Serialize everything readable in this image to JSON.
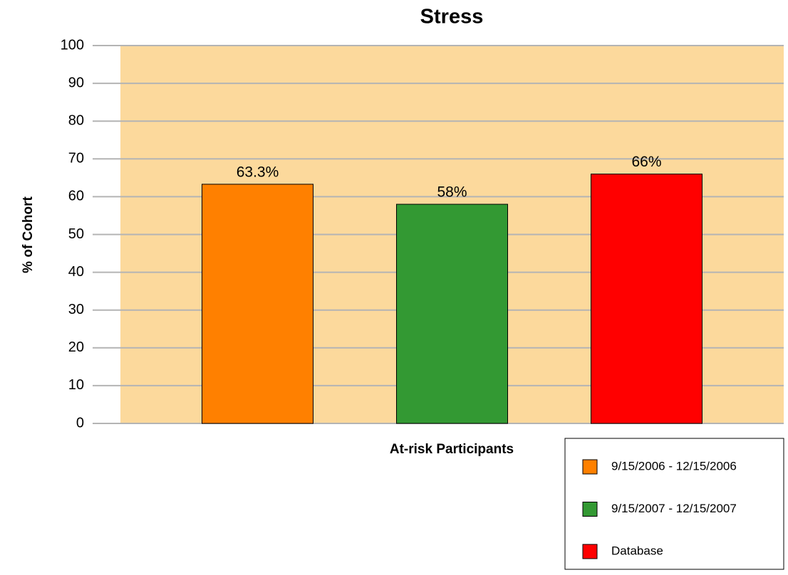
{
  "chart_data": {
    "type": "bar",
    "title": "Stress",
    "xlabel": "At-risk Participants",
    "ylabel": "% of Cohort",
    "series": [
      {
        "name": "9/15/2006 - 12/15/2006",
        "color": "#ff8000",
        "values": [
          63.3
        ],
        "value_labels": [
          "63.3%"
        ]
      },
      {
        "name": "9/15/2007 - 12/15/2007",
        "color": "#339933",
        "values": [
          58
        ],
        "value_labels": [
          "58%"
        ]
      },
      {
        "name": "Database",
        "color": "#ff0000",
        "values": [
          66
        ],
        "value_labels": [
          "66%"
        ]
      }
    ],
    "ylim": [
      0,
      100
    ],
    "yticks": [
      0,
      10,
      20,
      30,
      40,
      50,
      60,
      70,
      80,
      90,
      100
    ],
    "grid": true,
    "plot_background": "#fcd99c",
    "legend": "bottom-right"
  }
}
